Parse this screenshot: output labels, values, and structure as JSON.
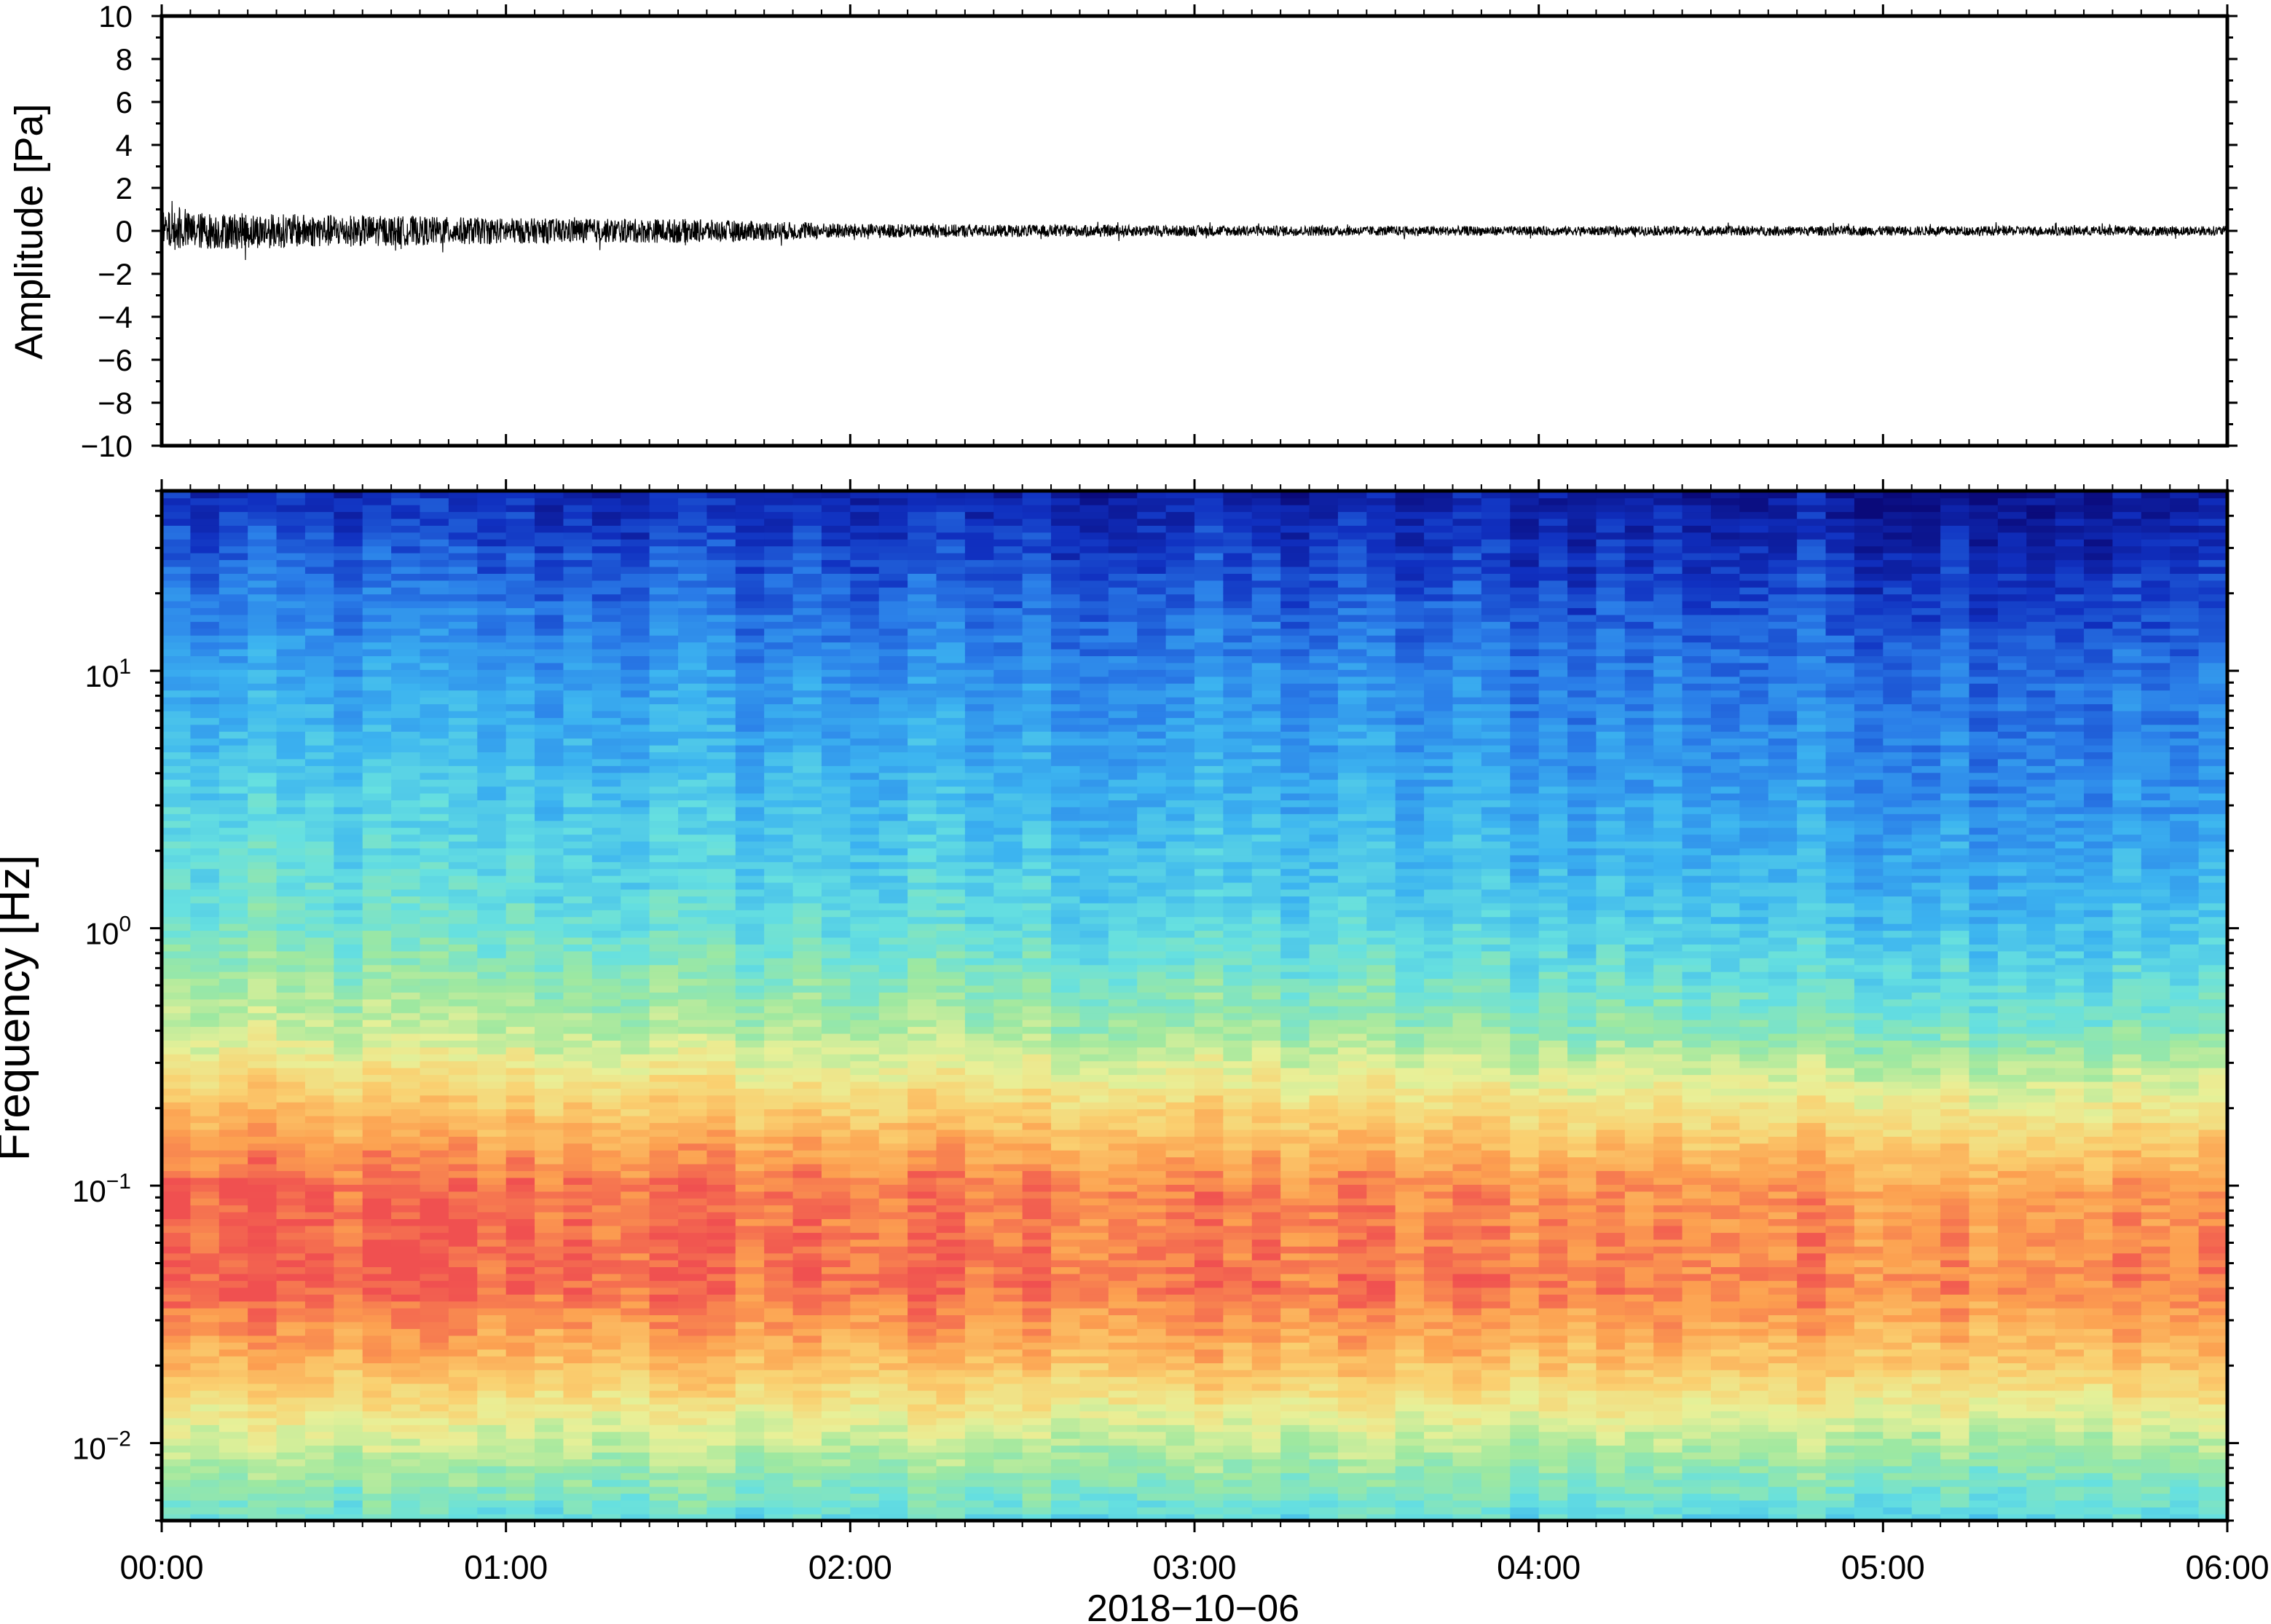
{
  "chart_data": [
    {
      "type": "line",
      "panel": "waveform",
      "ylabel": "Amplitude [Pa]",
      "ylim": [
        -10,
        10
      ],
      "yticks": [
        10,
        8,
        6,
        4,
        2,
        0,
        -2,
        -4,
        -6,
        -8,
        -10
      ],
      "ytick_labels": [
        "10",
        "8",
        "6",
        "4",
        "2",
        "0",
        "−2",
        "−4",
        "−6",
        "−8",
        "−10"
      ],
      "xlim_hours": [
        0,
        6
      ],
      "series": [
        {
          "x_hours": [
            0,
            0.25,
            0.5,
            0.75,
            1.0,
            1.25,
            1.5,
            1.75,
            2.0,
            2.25,
            2.5,
            2.75,
            3.0,
            3.25,
            3.5,
            3.75,
            4.0,
            4.25,
            4.5,
            4.75,
            5.0,
            5.25,
            5.5,
            5.75,
            6.0
          ],
          "amplitude_envelope_pa": [
            1.2,
            1.1,
            1.0,
            0.9,
            0.8,
            0.75,
            0.75,
            0.6,
            0.45,
            0.4,
            0.38,
            0.36,
            0.34,
            0.32,
            0.3,
            0.3,
            0.28,
            0.28,
            0.3,
            0.3,
            0.3,
            0.3,
            0.3,
            0.3,
            0.3
          ],
          "color": "#000000"
        }
      ]
    },
    {
      "type": "heatmap",
      "panel": "spectrogram",
      "ylabel": "Frequency [Hz]",
      "xlabel": "2018−10−06",
      "yscale": "log",
      "ylim_hz": [
        0.005,
        50
      ],
      "yticks_hz": [
        10,
        1,
        0.1,
        0.01
      ],
      "ytick_labels": [
        {
          "base": "10",
          "exp": "1"
        },
        {
          "base": "10",
          "exp": "0"
        },
        {
          "base": "10",
          "exp": "−1"
        },
        {
          "base": "10",
          "exp": "−2"
        }
      ],
      "x_ticks": [
        "00:00",
        "01:00",
        "02:00",
        "03:00",
        "04:00",
        "05:00",
        "06:00"
      ],
      "xlim_hours": [
        0,
        6
      ],
      "colormap": [
        "#0a0a7a",
        "#1030c0",
        "#2a7de8",
        "#3cb4f0",
        "#66e0e0",
        "#9ee8a0",
        "#e8f098",
        "#fad070",
        "#fca050",
        "#f05050"
      ],
      "log10_freq_profile": [
        -2.3,
        -2.0,
        -1.7,
        -1.4,
        -1.0,
        -0.7,
        -0.4,
        0.0,
        0.5,
        1.0,
        1.3,
        1.7
      ],
      "level_at_start": [
        0.45,
        0.62,
        0.82,
        0.97,
        0.97,
        0.82,
        0.62,
        0.48,
        0.4,
        0.3,
        0.22,
        0.1
      ],
      "level_at_end": [
        0.42,
        0.58,
        0.8,
        0.92,
        0.88,
        0.7,
        0.5,
        0.36,
        0.26,
        0.2,
        0.13,
        0.03
      ]
    }
  ]
}
